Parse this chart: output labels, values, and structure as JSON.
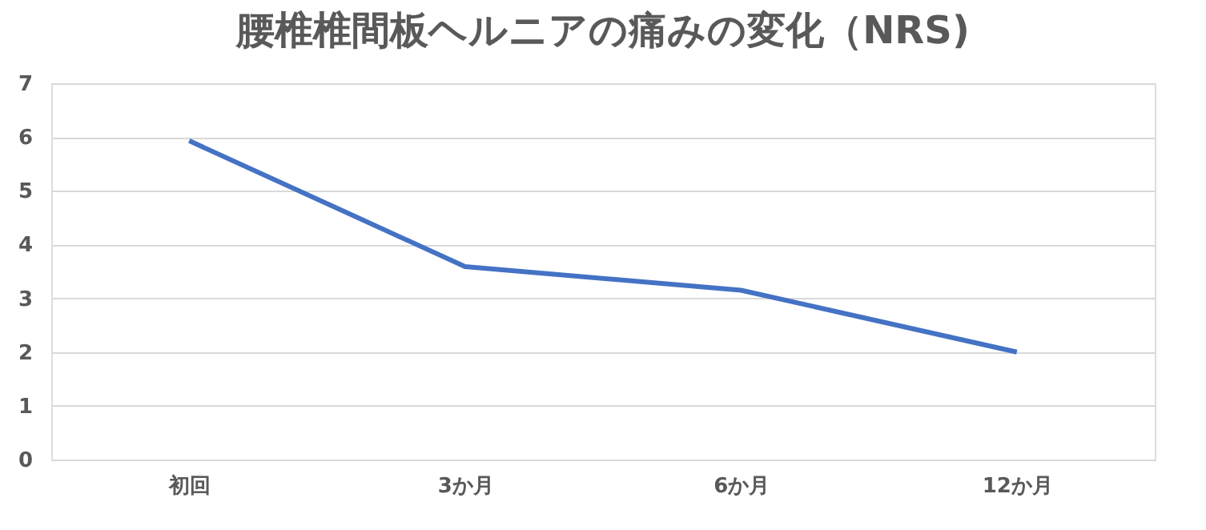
{
  "chart_data": {
    "type": "line",
    "title": "腰椎椎間板ヘルニアの痛みの変化（NRS)",
    "categories": [
      "初回",
      "3か月",
      "6か月",
      "12か月"
    ],
    "series": [
      {
        "color": "#4472c4",
        "values": [
          5.93,
          3.59,
          3.15,
          2.0
        ]
      }
    ],
    "ylim": [
      0,
      7
    ],
    "yticks": [
      0,
      1,
      2,
      3,
      4,
      5,
      6,
      7
    ],
    "grid": "y",
    "legend": false,
    "marker": "none",
    "line_style": "solid"
  }
}
